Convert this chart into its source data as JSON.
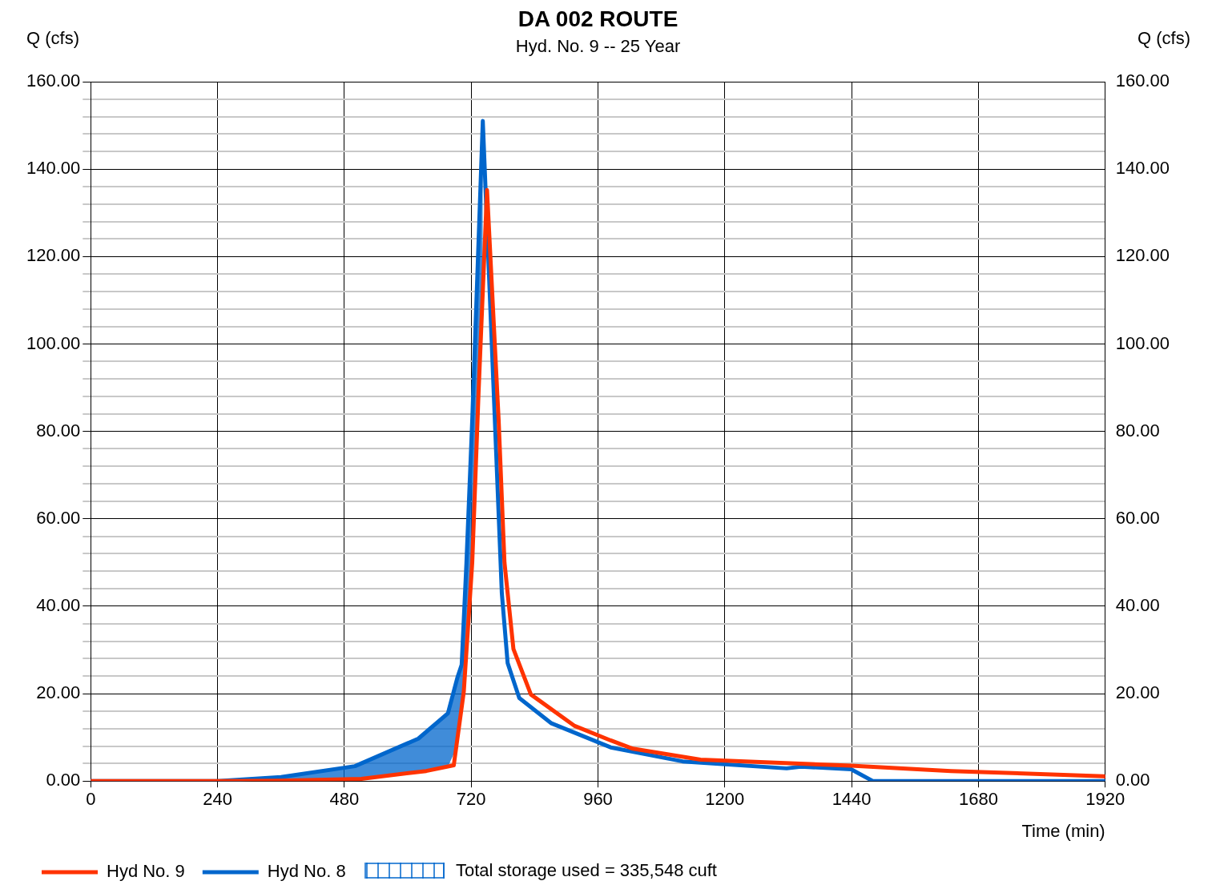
{
  "chart_data": {
    "type": "line",
    "title": "DA 002 ROUTE",
    "subtitle": "Hyd. No. 9 -- 25 Year",
    "xlabel": "Time (min)",
    "ylabel": "Q (cfs)",
    "y2label": "Q (cfs)",
    "annotations": [
      "Total storage used = 335,548 cuft"
    ],
    "xlim": [
      0,
      1920
    ],
    "xticks": [
      0,
      240,
      480,
      720,
      960,
      1200,
      1440,
      1680,
      1920
    ],
    "ylim": [
      0,
      160
    ],
    "y2lim": [
      0,
      160
    ],
    "yticks": [
      {
        "value": 0,
        "label": "0.00"
      },
      {
        "value": 4,
        "label": null
      },
      {
        "value": 8,
        "label": null
      },
      {
        "value": 12,
        "label": null
      },
      {
        "value": 16,
        "label": null
      },
      {
        "value": 20,
        "label": "20.00"
      },
      {
        "value": 24,
        "label": null
      },
      {
        "value": 28,
        "label": null
      },
      {
        "value": 32,
        "label": null
      },
      {
        "value": 36,
        "label": null
      },
      {
        "value": 40,
        "label": "40.00"
      },
      {
        "value": 44,
        "label": null
      },
      {
        "value": 48,
        "label": null
      },
      {
        "value": 52,
        "label": null
      },
      {
        "value": 56,
        "label": null
      },
      {
        "value": 60,
        "label": "60.00"
      },
      {
        "value": 64,
        "label": null
      },
      {
        "value": 68,
        "label": null
      },
      {
        "value": 72,
        "label": null
      },
      {
        "value": 76,
        "label": null
      },
      {
        "value": 80,
        "label": "80.00"
      },
      {
        "value": 84,
        "label": null
      },
      {
        "value": 88,
        "label": null
      },
      {
        "value": 92,
        "label": null
      },
      {
        "value": 96,
        "label": null
      },
      {
        "value": 100,
        "label": "100.00"
      },
      {
        "value": 104,
        "label": null
      },
      {
        "value": 108,
        "label": null
      },
      {
        "value": 112,
        "label": null
      },
      {
        "value": 116,
        "label": null
      },
      {
        "value": 120,
        "label": "120.00"
      },
      {
        "value": 124,
        "label": null
      },
      {
        "value": 128,
        "label": null
      },
      {
        "value": 132,
        "label": null
      },
      {
        "value": 136,
        "label": null
      },
      {
        "value": 140,
        "label": "140.00"
      },
      {
        "value": 144,
        "label": null
      },
      {
        "value": 148,
        "label": null
      },
      {
        "value": 152,
        "label": null
      },
      {
        "value": 156,
        "label": null
      },
      {
        "value": 160,
        "label": "160.00"
      }
    ],
    "y2ticks": [
      {
        "value": 0,
        "label": "0.00"
      },
      {
        "value": 20,
        "label": "20.00"
      },
      {
        "value": 40,
        "label": "40.00"
      },
      {
        "value": 60,
        "label": "60.00"
      },
      {
        "value": 80,
        "label": "80.00"
      },
      {
        "value": 100,
        "label": "100.00"
      },
      {
        "value": 120,
        "label": "120.00"
      },
      {
        "value": 140,
        "label": "140.00"
      },
      {
        "value": 160,
        "label": "160.00"
      }
    ],
    "grid": true,
    "legend": "bottom",
    "marker": "none",
    "line_style": "solid",
    "series": [
      {
        "name": "Hyd No. 9",
        "color": "#ff3300",
        "x": [
          0,
          240,
          360,
          512,
          635,
          687,
          706,
          722,
          734,
          750,
          772,
          783,
          800,
          833,
          916,
          984,
          1026,
          1154,
          1439,
          1628,
          1917,
          1920
        ],
        "values": [
          0,
          0,
          0.1,
          0.5,
          2.3,
          3.6,
          20.4,
          50,
          89,
          135.2,
          82.5,
          50,
          30.2,
          19.8,
          12.6,
          9.3,
          7.4,
          4.9,
          3.5,
          2.3,
          1.1,
          1.0
        ]
      },
      {
        "name": "Hyd No. 8",
        "color": "#0066cc",
        "x": [
          0,
          240,
          360,
          500,
          620,
          676,
          694,
          702,
          711,
          722,
          742,
          767,
          778,
          789,
          811,
          872,
          984,
          1120,
          1317,
          1344,
          1439,
          1480,
          1920
        ],
        "values": [
          0,
          0,
          0.9,
          3.4,
          9.7,
          15.5,
          23.7,
          26.6,
          49.8,
          82.5,
          151,
          76,
          43,
          27,
          19,
          13.2,
          7.7,
          4.5,
          2.9,
          3.3,
          2.7,
          0,
          0
        ],
        "lower": [
          null,
          0,
          0.1,
          0.5,
          2.1,
          3.3,
          8,
          15,
          32,
          50,
          118,
          null,
          null,
          null,
          null,
          null,
          null,
          null,
          null,
          null,
          null,
          null,
          null
        ],
        "upper": [
          null,
          0,
          0.9,
          3.4,
          9.7,
          15.5,
          23.7,
          26.6,
          49.8,
          82.5,
          151,
          null,
          null,
          null,
          null,
          null,
          null,
          null,
          null,
          null,
          null,
          null,
          null
        ]
      }
    ]
  }
}
